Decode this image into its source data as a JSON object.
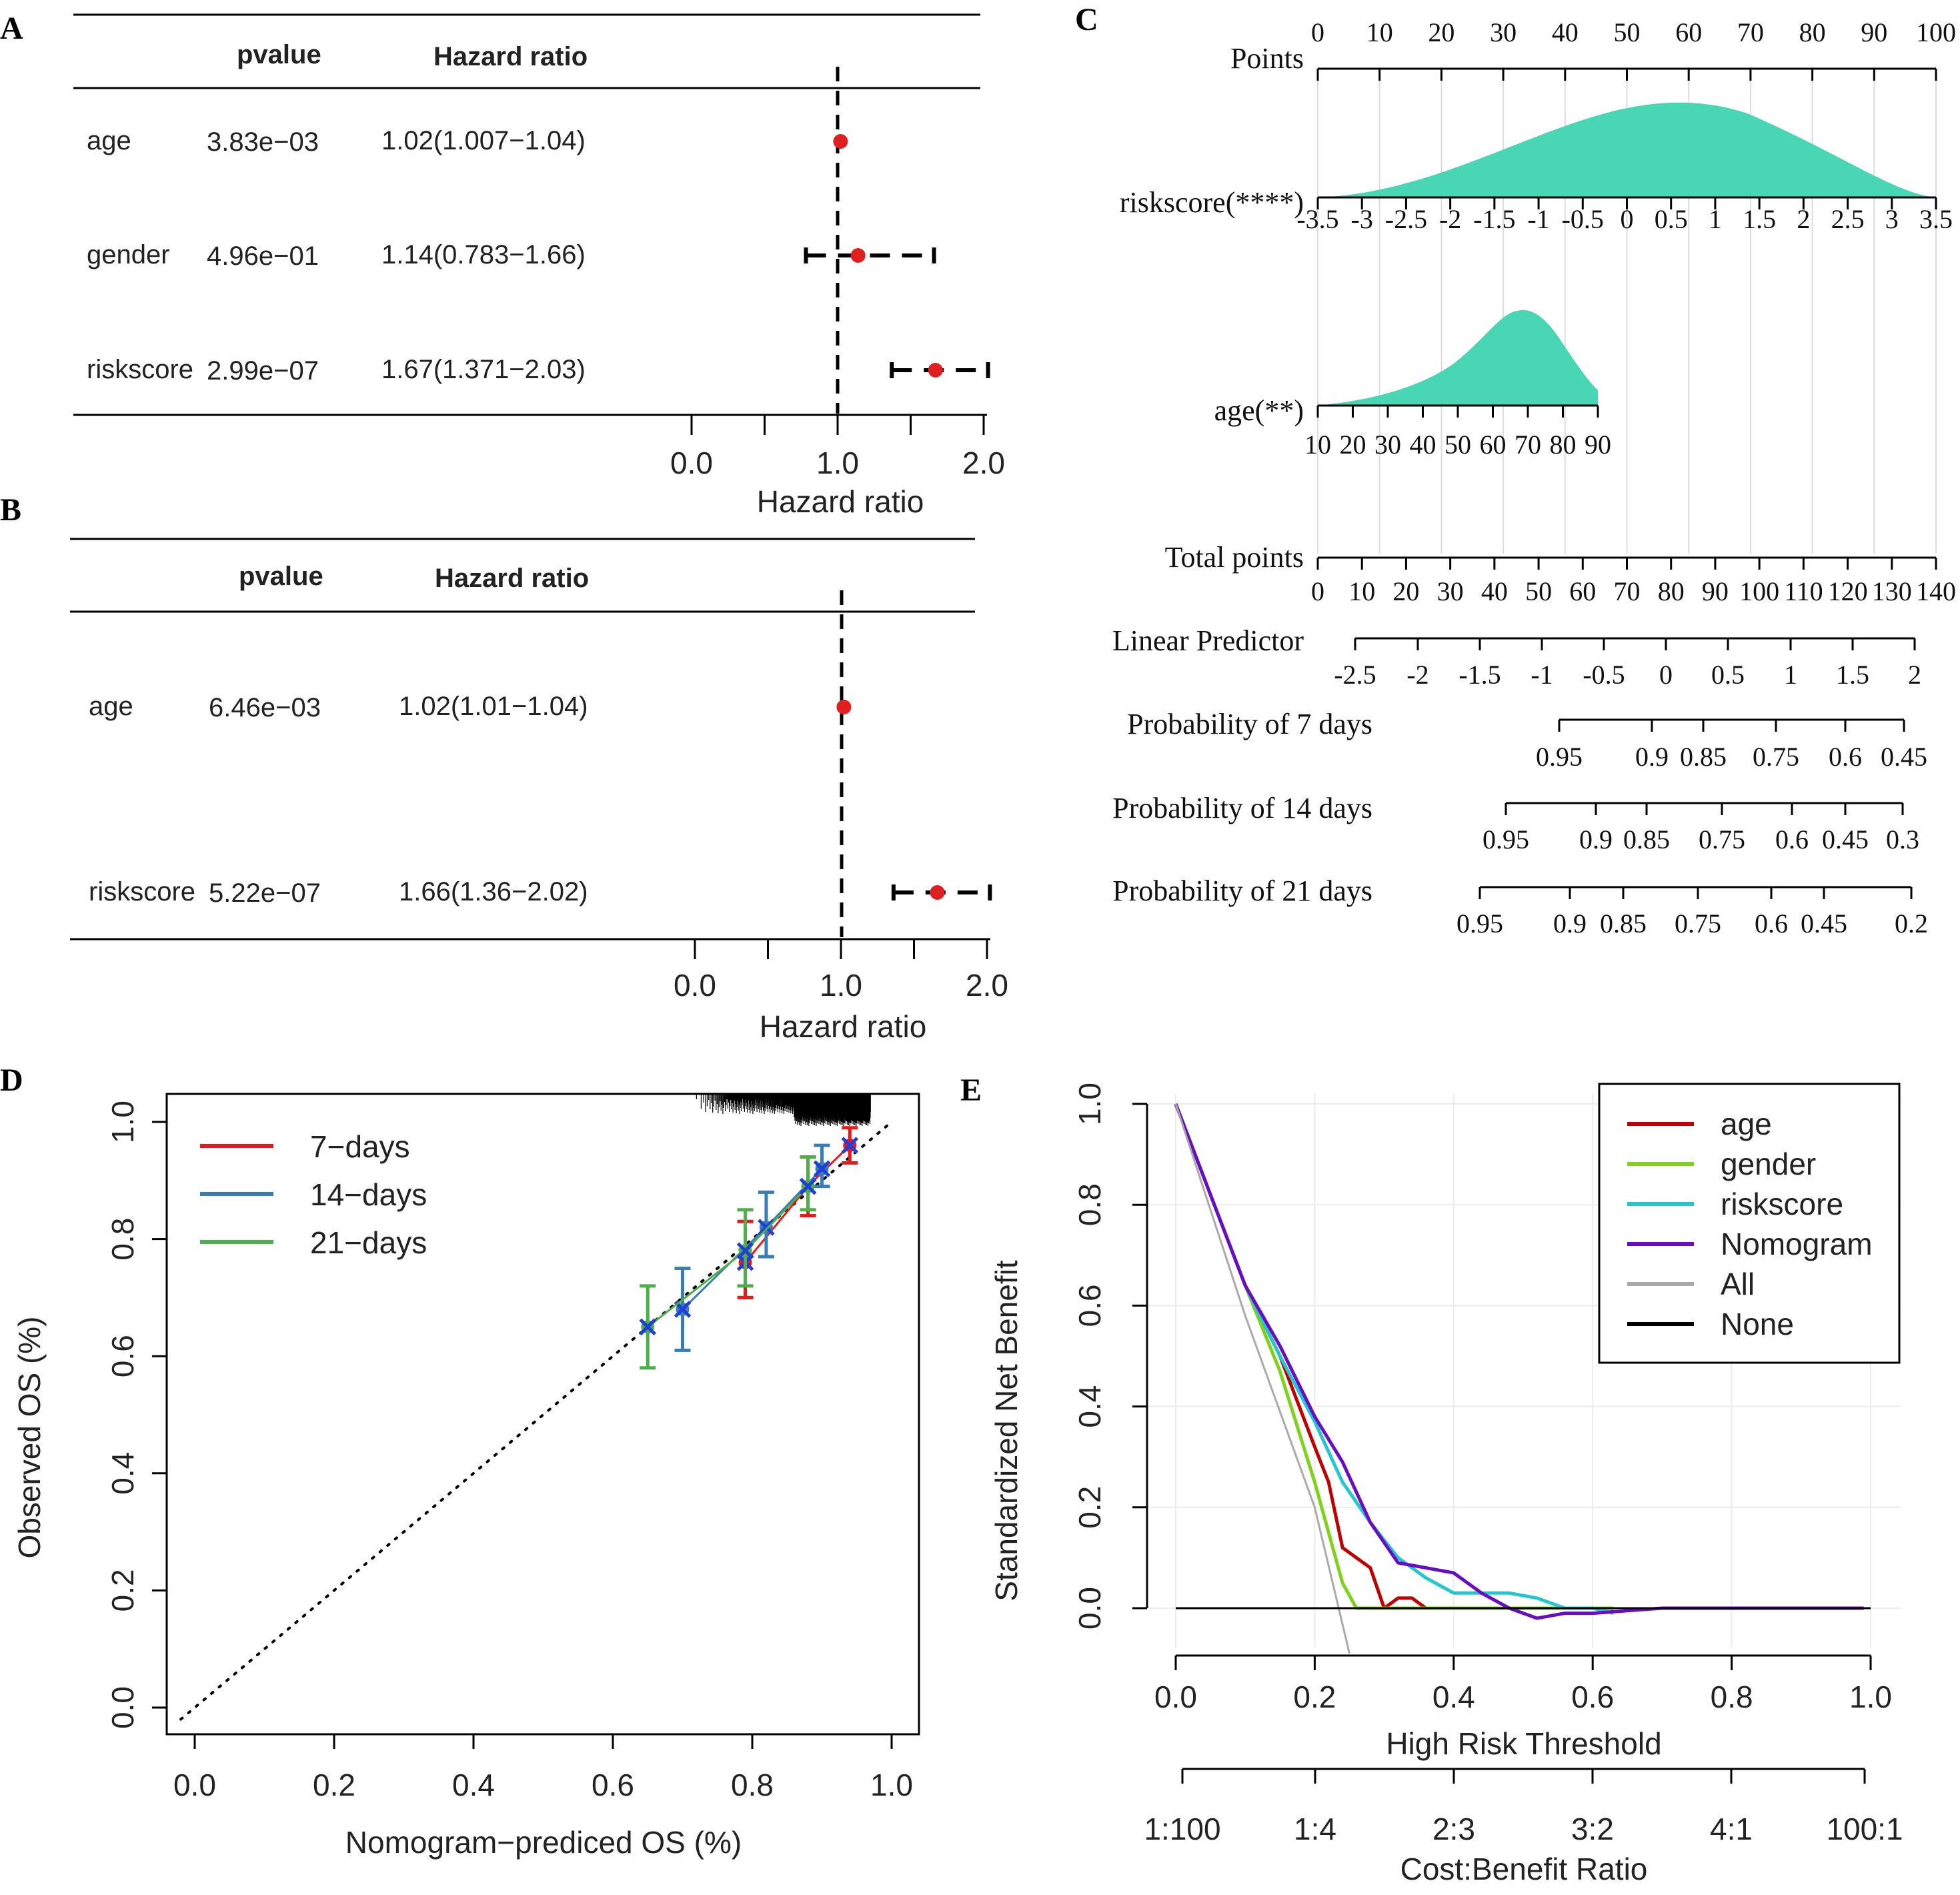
{
  "panels": {
    "a": "A",
    "b": "B",
    "c": "C",
    "d": "D",
    "e": "E"
  },
  "forest_a": {
    "header_pvalue": "pvalue",
    "header_hr": "Hazard ratio",
    "xlabel": "Hazard ratio",
    "ticks": [
      "0.0",
      "1.0",
      "2.0"
    ],
    "rows": [
      {
        "name": "age",
        "p": "3.83e−03",
        "hr_text": "1.02(1.007−1.04)",
        "hr": 1.02,
        "lo": 1.007,
        "hi": 1.04
      },
      {
        "name": "gender",
        "p": "4.96e−01",
        "hr_text": "1.14(0.783−1.66)",
        "hr": 1.14,
        "lo": 0.783,
        "hi": 1.66
      },
      {
        "name": "riskscore",
        "p": "2.99e−07",
        "hr_text": "1.67(1.371−2.03)",
        "hr": 1.67,
        "lo": 1.371,
        "hi": 2.03
      }
    ]
  },
  "forest_b": {
    "header_pvalue": "pvalue",
    "header_hr": "Hazard ratio",
    "xlabel": "Hazard ratio",
    "ticks": [
      "0.0",
      "1.0",
      "2.0"
    ],
    "rows": [
      {
        "name": "age",
        "p": "6.46e−03",
        "hr_text": "1.02(1.01−1.04)",
        "hr": 1.02,
        "lo": 1.01,
        "hi": 1.04
      },
      {
        "name": "riskscore",
        "p": "5.22e−07",
        "hr_text": "1.66(1.36−2.02)",
        "hr": 1.66,
        "lo": 1.36,
        "hi": 2.02
      }
    ]
  },
  "nomogram": {
    "points_label": "Points",
    "points_ticks": [
      "0",
      "10",
      "20",
      "30",
      "40",
      "50",
      "60",
      "70",
      "80",
      "90",
      "100"
    ],
    "riskscore_label": "riskscore(****)",
    "riskscore_ticks": [
      "-3.5",
      "-3",
      "-2.5",
      "-2",
      "-1.5",
      "-1",
      "-0.5",
      "0",
      "0.5",
      "1",
      "1.5",
      "2",
      "2.5",
      "3",
      "3.5"
    ],
    "age_label": "age(**)",
    "age_ticks": [
      "10",
      "20",
      "30",
      "40",
      "50",
      "60",
      "70",
      "80",
      "90"
    ],
    "total_label": "Total points",
    "total_ticks": [
      "0",
      "10",
      "20",
      "30",
      "40",
      "50",
      "60",
      "70",
      "80",
      "90",
      "100",
      "110",
      "120",
      "130",
      "140"
    ],
    "lp_label": "Linear Predictor",
    "lp_ticks": [
      "-2.5",
      "-2",
      "-1.5",
      "-1",
      "-0.5",
      "0",
      "0.5",
      "1",
      "1.5",
      "2"
    ],
    "p7_label": "Probability of 7 days",
    "p7_ticks": [
      "0.95",
      "0.9",
      "0.85",
      "0.75",
      "0.6",
      "0.45"
    ],
    "p14_label": "Probability of 14 days",
    "p14_ticks": [
      "0.95",
      "0.9",
      "0.85",
      "0.75",
      "0.6",
      "0.45",
      "0.3"
    ],
    "p21_label": "Probability of 21 days",
    "p21_ticks": [
      "0.95",
      "0.9",
      "0.85",
      "0.75",
      "0.6",
      "0.45",
      "0.2"
    ]
  },
  "calibration": {
    "xlabel": "Nomogram−prediced OS (%)",
    "ylabel": "Observed OS (%)",
    "xticks": [
      "0.0",
      "0.2",
      "0.4",
      "0.6",
      "0.8",
      "1.0"
    ],
    "yticks": [
      "0.0",
      "0.2",
      "0.4",
      "0.6",
      "0.8",
      "1.0"
    ],
    "legend": [
      {
        "label": "7−days",
        "color": "#e41a1c"
      },
      {
        "label": "14−days",
        "color": "#377eb8"
      },
      {
        "label": "21−days",
        "color": "#4daf4a"
      }
    ]
  },
  "dca": {
    "xlabel": "High Risk Threshold",
    "ylabel": "Standardized Net Benefit",
    "x2label": "Cost:Benefit Ratio",
    "xticks": [
      "0.0",
      "0.2",
      "0.4",
      "0.6",
      "0.8",
      "1.0"
    ],
    "yticks": [
      "0.0",
      "0.2",
      "0.4",
      "0.6",
      "0.8",
      "1.0"
    ],
    "x2ticks": [
      "1:100",
      "1:4",
      "2:3",
      "3:2",
      "4:1",
      "100:1"
    ],
    "legend": [
      {
        "label": "age",
        "color": "#c00000"
      },
      {
        "label": "gender",
        "color": "#7fd11b"
      },
      {
        "label": "riskscore",
        "color": "#22c7d0"
      },
      {
        "label": "Nomogram",
        "color": "#6a0dc2"
      },
      {
        "label": "All",
        "color": "#aaaaaa"
      },
      {
        "label": "None",
        "color": "#000000"
      }
    ]
  },
  "chart_data": [
    {
      "type": "forest",
      "panel": "A",
      "xlabel": "Hazard ratio",
      "xlim": [
        0,
        2
      ],
      "series": [
        {
          "name": "age",
          "values": [
            1.02,
            1.007,
            1.04
          ]
        },
        {
          "name": "gender",
          "values": [
            1.14,
            0.783,
            1.66
          ]
        },
        {
          "name": "riskscore",
          "values": [
            1.67,
            1.371,
            2.03
          ]
        }
      ]
    },
    {
      "type": "forest",
      "panel": "B",
      "xlabel": "Hazard ratio",
      "xlim": [
        0,
        2
      ],
      "series": [
        {
          "name": "age",
          "values": [
            1.02,
            1.01,
            1.04
          ]
        },
        {
          "name": "riskscore",
          "values": [
            1.66,
            1.36,
            2.02
          ]
        }
      ]
    },
    {
      "type": "scatter",
      "panel": "D",
      "xlabel": "Nomogram−prediced OS (%)",
      "ylabel": "Observed OS (%)",
      "xlim": [
        0,
        1
      ],
      "ylim": [
        0,
        1
      ],
      "series": [
        {
          "name": "7−days",
          "x": [
            0.79,
            0.88,
            0.94
          ],
          "y": [
            0.76,
            0.89,
            0.96
          ],
          "lo": [
            0.7,
            0.84,
            0.93
          ],
          "hi": [
            0.83,
            0.94,
            0.99
          ]
        },
        {
          "name": "14−days",
          "x": [
            0.7,
            0.82,
            0.9
          ],
          "y": [
            0.68,
            0.82,
            0.92
          ],
          "lo": [
            0.61,
            0.77,
            0.89
          ],
          "hi": [
            0.75,
            0.88,
            0.96
          ]
        },
        {
          "name": "21−days",
          "x": [
            0.65,
            0.79,
            0.88
          ],
          "y": [
            0.65,
            0.78,
            0.89
          ],
          "lo": [
            0.58,
            0.72,
            0.85
          ],
          "hi": [
            0.72,
            0.85,
            0.94
          ]
        }
      ]
    },
    {
      "type": "line",
      "panel": "E",
      "xlabel": "High Risk Threshold",
      "ylabel": "Standardized Net Benefit",
      "xlim": [
        0,
        1
      ],
      "ylim": [
        0,
        1
      ],
      "series": [
        {
          "name": "age",
          "x": [
            0,
            0.05,
            0.1,
            0.15,
            0.2,
            0.22,
            0.24,
            0.26,
            0.28,
            0.3,
            0.32,
            0.34,
            0.36,
            0.38
          ],
          "y": [
            1,
            0.82,
            0.64,
            0.5,
            0.32,
            0.25,
            0.12,
            0.1,
            0.08,
            0.0,
            0.02,
            0.02,
            0.0,
            0.0
          ]
        },
        {
          "name": "gender",
          "x": [
            0,
            0.05,
            0.1,
            0.15,
            0.2,
            0.22,
            0.24,
            0.26,
            0.3,
            0.4,
            0.5,
            0.63
          ],
          "y": [
            1,
            0.82,
            0.64,
            0.47,
            0.25,
            0.15,
            0.05,
            0.0,
            0.0,
            0.0,
            0.0,
            0.0
          ]
        },
        {
          "name": "riskscore",
          "x": [
            0,
            0.05,
            0.1,
            0.15,
            0.2,
            0.24,
            0.28,
            0.32,
            0.36,
            0.4,
            0.44,
            0.48,
            0.52,
            0.56,
            0.6,
            0.63
          ],
          "y": [
            1,
            0.82,
            0.64,
            0.5,
            0.37,
            0.25,
            0.17,
            0.1,
            0.06,
            0.03,
            0.03,
            0.03,
            0.02,
            0.0,
            0.0,
            -0.01
          ]
        },
        {
          "name": "Nomogram",
          "x": [
            0,
            0.05,
            0.1,
            0.15,
            0.2,
            0.24,
            0.28,
            0.32,
            0.36,
            0.4,
            0.44,
            0.48,
            0.52,
            0.56,
            0.6,
            0.7,
            0.8,
            0.9,
            0.99
          ],
          "y": [
            1,
            0.82,
            0.64,
            0.52,
            0.38,
            0.29,
            0.17,
            0.09,
            0.08,
            0.07,
            0.03,
            0.0,
            -0.02,
            -0.01,
            -0.01,
            0.0,
            0.0,
            0.0,
            0.0
          ]
        },
        {
          "name": "All",
          "x": [
            0,
            0.1,
            0.2,
            0.25
          ],
          "y": [
            1,
            0.58,
            0.2,
            -0.09
          ]
        },
        {
          "name": "None",
          "x": [
            0,
            1
          ],
          "y": [
            0,
            0
          ]
        }
      ]
    }
  ]
}
